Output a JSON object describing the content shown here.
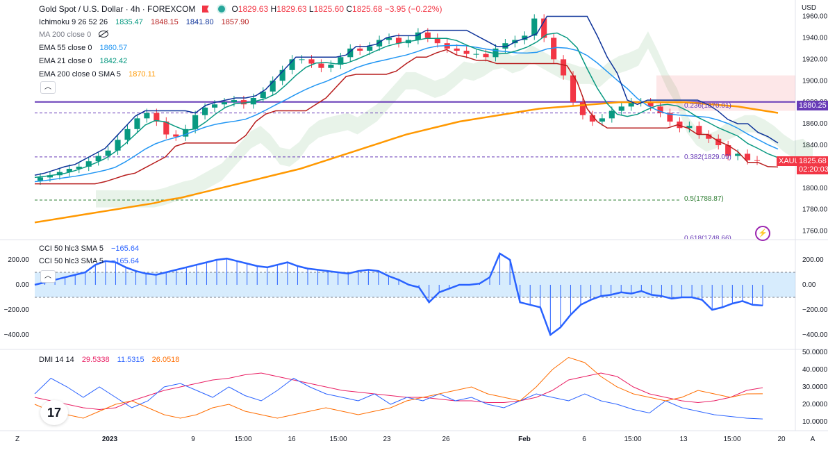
{
  "header": {
    "title": "Gold Spot / U.S. Dollar · 4h · FOREXCOM",
    "open_label": "O",
    "open": "1829.63",
    "high_label": "H",
    "high": "1829.63",
    "low_label": "L",
    "low": "1825.60",
    "close_label": "C",
    "close": "1825.68",
    "change": "−3.95 (−0.22%)"
  },
  "indicators": {
    "ichimoku": {
      "label": "Ichimoku 9 26 52 26",
      "v1": "1835.47",
      "v2": "1848.15",
      "v3": "1841.80",
      "v4": "1857.90"
    },
    "ma200": {
      "label": "MA 200 close 0"
    },
    "ema55": {
      "label": "EMA 55 close 0",
      "value": "1860.57"
    },
    "ema21": {
      "label": "EMA 21 close 0",
      "value": "1842.42"
    },
    "ema200": {
      "label": "EMA 200 close 0 SMA 5",
      "value": "1870.11"
    },
    "cci1": {
      "label": "CCI 50 hlc3 SMA 5",
      "value": "−165.64"
    },
    "cci2": {
      "label": "CCI 50 hlc3 SMA 5",
      "value": "−165.64"
    },
    "dmi": {
      "label": "DMI 14 14",
      "v1": "29.5338",
      "v2": "11.5315",
      "v3": "26.0518"
    }
  },
  "axes": {
    "currency": "USD",
    "price_ticks": [
      "1960.00",
      "1940.00",
      "1920.00",
      "1900.00",
      "1880.00",
      "1860.00",
      "1840.00",
      "1820.00",
      "1800.00",
      "1780.00",
      "1760.00"
    ],
    "cci_ticks": [
      "200.00",
      "0.00",
      "−200.00",
      "−400.00"
    ],
    "dmi_ticks": [
      "50.0000",
      "40.0000",
      "30.0000",
      "20.0000",
      "10.0000"
    ],
    "time_ticks": [
      "2023",
      "9",
      "15:00",
      "16",
      "15:00",
      "23",
      "26",
      "Feb",
      "6",
      "15:00",
      "13",
      "15:00",
      "20"
    ],
    "scale_left": "Z",
    "scale_right": "A"
  },
  "tags": {
    "hline_price": "1880.25",
    "symbol": "XAUUSD",
    "last_price": "1825.68",
    "countdown": "02:20:03"
  },
  "fib": {
    "f236": "0.236(1870.01)",
    "f382": "0.382(1829.09)",
    "f50": "0.5(1788.87)",
    "f618": "0.618(1748.66)"
  },
  "colors": {
    "up": "#089981",
    "down": "#f23645",
    "ema55": "#2196f3",
    "ema21": "#089981",
    "ema200": "#ff9800",
    "tenkan": "#0c3299",
    "kijun": "#b71c1c",
    "lagging": "#43a047",
    "spanA": "#43a047",
    "spanB": "#f23645",
    "hline": "#673ab7",
    "cci": "#2962ff",
    "dmi_plus": "#e91e63",
    "dmi_minus": "#2962ff",
    "adx": "#ff6d00"
  },
  "chart_data": {
    "type": "candlestick",
    "title": "Gold Spot / U.S. Dollar",
    "xlabel": "",
    "ylabel": "USD",
    "ylim": [
      1752,
      1972
    ],
    "x_ticks": [
      "2023",
      "9",
      "15:00",
      "16",
      "15:00",
      "23",
      "26",
      "Feb",
      "6",
      "15:00",
      "13",
      "15:00",
      "20"
    ],
    "close_series": [
      1810,
      1812,
      1815,
      1818,
      1820,
      1825,
      1830,
      1835,
      1845,
      1855,
      1865,
      1870,
      1862,
      1850,
      1848,
      1855,
      1868,
      1875,
      1878,
      1880,
      1882,
      1878,
      1884,
      1890,
      1900,
      1910,
      1920,
      1920,
      1916,
      1912,
      1915,
      1922,
      1930,
      1928,
      1932,
      1938,
      1940,
      1935,
      1938,
      1945,
      1940,
      1935,
      1930,
      1928,
      1925,
      1925,
      1922,
      1930,
      1935,
      1938,
      1942,
      1958,
      1940,
      1920,
      1905,
      1880,
      1868,
      1862,
      1865,
      1872,
      1876,
      1880,
      1880,
      1876,
      1870,
      1862,
      1856,
      1858,
      1850,
      1846,
      1840,
      1830,
      1832,
      1826,
      1825.68
    ],
    "ema200": [
      1768,
      1770,
      1772,
      1774,
      1776,
      1778,
      1780,
      1782,
      1784,
      1786,
      1789,
      1791,
      1794,
      1797,
      1800,
      1803,
      1806,
      1809,
      1812,
      1815,
      1818,
      1822,
      1826,
      1830,
      1834,
      1838,
      1842,
      1846,
      1850,
      1853,
      1856,
      1859,
      1862,
      1864,
      1866,
      1868,
      1870,
      1872,
      1874,
      1875,
      1876,
      1877,
      1878,
      1879,
      1880,
      1880,
      1880,
      1880,
      1880,
      1880,
      1879,
      1878,
      1877,
      1876,
      1874,
      1872,
      1870.11
    ],
    "horizontal_line": 1880.25,
    "fibonacci": [
      {
        "level": 0.236,
        "price": 1870.01
      },
      {
        "level": 0.382,
        "price": 1829.09
      },
      {
        "level": 0.5,
        "price": 1788.87
      },
      {
        "level": 0.618,
        "price": 1748.66
      }
    ],
    "cci": [
      0,
      20,
      40,
      60,
      80,
      100,
      160,
      190,
      180,
      140,
      110,
      90,
      80,
      100,
      120,
      140,
      160,
      180,
      200,
      210,
      190,
      170,
      150,
      140,
      160,
      180,
      150,
      130,
      120,
      110,
      100,
      90,
      110,
      120,
      110,
      70,
      40,
      0,
      -20,
      -140,
      -60,
      -30,
      0,
      0,
      10,
      60,
      250,
      200,
      -140,
      -160,
      -180,
      -400,
      -340,
      -240,
      -160,
      -120,
      -90,
      -80,
      -60,
      -70,
      -50,
      -80,
      -90,
      -110,
      -100,
      -100,
      -120,
      -200,
      -180,
      -150,
      -130,
      -160,
      -165.64
    ],
    "dmi_plus": [
      24,
      22,
      20,
      18,
      17,
      18,
      22,
      25,
      28,
      30,
      32,
      34,
      35,
      37,
      38,
      36,
      34,
      32,
      30,
      28,
      27,
      26,
      25,
      24,
      24,
      23,
      22,
      22,
      21,
      21,
      22,
      24,
      28,
      34,
      36,
      38,
      36,
      30,
      26,
      24,
      22,
      21,
      22,
      24,
      28,
      29.5338
    ],
    "dmi_minus": [
      26,
      35,
      30,
      24,
      30,
      24,
      18,
      22,
      30,
      32,
      28,
      24,
      30,
      25,
      22,
      28,
      35,
      30,
      26,
      24,
      22,
      26,
      20,
      24,
      22,
      26,
      22,
      24,
      20,
      18,
      22,
      26,
      24,
      22,
      26,
      22,
      20,
      17,
      15,
      22,
      18,
      16,
      14,
      13,
      12,
      11.5315
    ],
    "adx": [
      20,
      16,
      14,
      12,
      16,
      20,
      22,
      18,
      14,
      12,
      14,
      18,
      20,
      16,
      14,
      12,
      14,
      16,
      18,
      16,
      14,
      16,
      18,
      22,
      24,
      26,
      28,
      30,
      26,
      24,
      22,
      30,
      40,
      47,
      44,
      36,
      30,
      26,
      24,
      22,
      24,
      28,
      26,
      24,
      26,
      26.0518
    ]
  }
}
